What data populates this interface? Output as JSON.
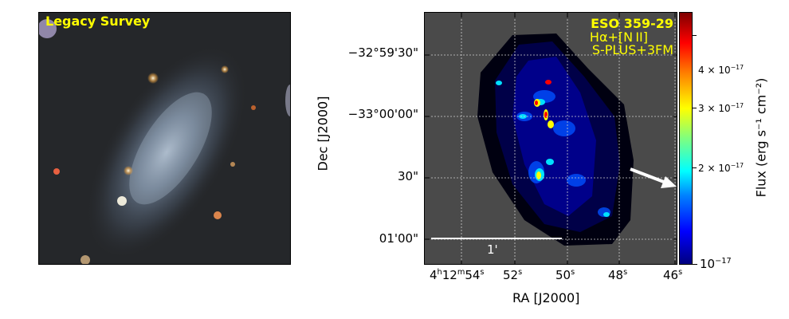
{
  "left_panel": {
    "label": "Legacy Survey"
  },
  "right_panel": {
    "title": "ESO 359-29",
    "line": "Hα+[N II]",
    "survey": "S-PLUS+3FM",
    "scale_bar_label": "1'"
  },
  "axes": {
    "xlabel": "RA [J2000]",
    "ylabel": "Dec [J2000]",
    "x_ticks": [
      {
        "h": "4",
        "h_unit": "h",
        "m": "12",
        "m_unit": "m",
        "s": "54",
        "s_unit": "s"
      },
      {
        "s": "52",
        "s_unit": "s"
      },
      {
        "s": "50",
        "s_unit": "s"
      },
      {
        "s": "48",
        "s_unit": "s"
      },
      {
        "s": "46",
        "s_unit": "s"
      }
    ],
    "y_ticks": [
      "−32°59'30\"",
      "−33°00'00\"",
      "30\"",
      "01'00\""
    ]
  },
  "colorbar": {
    "label": "Flux (erg s⁻¹ cm⁻²)",
    "ticks": [
      {
        "coef": "4 × 10",
        "exp": "−17"
      },
      {
        "coef": "3 × 10",
        "exp": "−17"
      },
      {
        "coef": "2 × 10",
        "exp": "−17"
      },
      {
        "coef": "10",
        "exp": "−17"
      }
    ],
    "colors": [
      "#00007f",
      "#0000ff",
      "#00ffff",
      "#ffff00",
      "#ff0000",
      "#7f0000"
    ]
  },
  "annotation_color": "#ffff00"
}
